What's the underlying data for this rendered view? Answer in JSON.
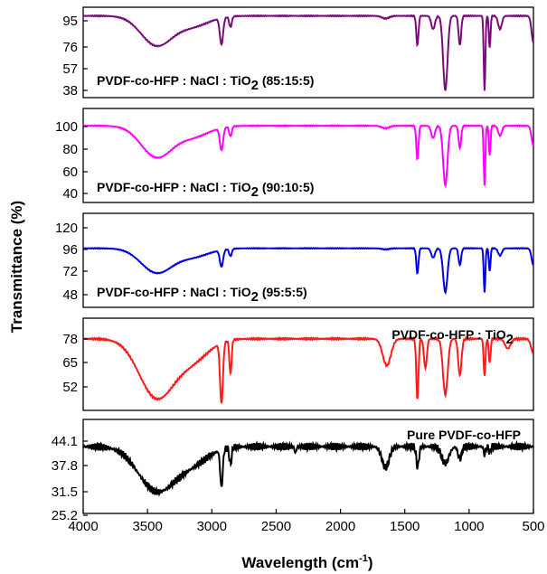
{
  "chart_data": {
    "type": "line",
    "xlabel": "Wavelength (cm",
    "xlabel_sup": "-1",
    "xlabel_end": ")",
    "ylabel": "Transmittance (%)",
    "x_range": [
      4000,
      500
    ],
    "x_ticks": [
      "4000",
      "3500",
      "3000",
      "2500",
      "2000",
      "1500",
      "1000",
      "500"
    ],
    "panels": [
      {
        "label": "PVDF-co-HFP : NaCl : TiO",
        "label_sub": "2",
        "label_tail": " (85:15:5)",
        "color": "#7a0a7a",
        "yticks": [
          "95",
          "76",
          "57",
          "38"
        ],
        "ylim": [
          36,
          104
        ],
        "baseline": 97.5,
        "oh": {
          "depth": 22,
          "center": 3430,
          "width": 170
        },
        "peaks": [
          [
            2925,
            20,
            18
          ],
          [
            2855,
            8,
            14
          ],
          [
            1650,
            2,
            40
          ],
          [
            1402,
            22,
            12
          ],
          [
            1280,
            10,
            20
          ],
          [
            1185,
            56,
            24
          ],
          [
            1072,
            22,
            14
          ],
          [
            880,
            56,
            9
          ],
          [
            840,
            24,
            9
          ],
          [
            760,
            10,
            20
          ],
          [
            500,
            20,
            20
          ]
        ]
      },
      {
        "label": "PVDF-co-HFP : NaCl : TiO",
        "label_sub": "2",
        "label_tail": " (90:10:5)",
        "color": "#ff00ff",
        "yticks": [
          "100",
          "80",
          "60",
          "40"
        ],
        "ylim": [
          36,
          112
        ],
        "baseline": 98,
        "oh": {
          "depth": 25,
          "center": 3430,
          "width": 170
        },
        "peaks": [
          [
            2925,
            18,
            18
          ],
          [
            2855,
            8,
            14
          ],
          [
            1650,
            2,
            40
          ],
          [
            1402,
            27,
            12
          ],
          [
            1280,
            10,
            20
          ],
          [
            1185,
            48,
            24
          ],
          [
            1072,
            18,
            14
          ],
          [
            880,
            48,
            9
          ],
          [
            840,
            24,
            9
          ],
          [
            760,
            8,
            20
          ],
          [
            500,
            16,
            20
          ]
        ]
      },
      {
        "label": "PVDF-co-HFP : NaCl : TiO",
        "label_sub": "2",
        "label_tail": " (95:5:5)",
        "color": "#0000e0",
        "yticks": [
          "120",
          "96",
          "72",
          "48"
        ],
        "ylim": [
          40,
          130
        ],
        "baseline": 96.5,
        "oh": {
          "depth": 23,
          "center": 3430,
          "width": 170
        },
        "peaks": [
          [
            2925,
            16,
            18
          ],
          [
            2855,
            7,
            14
          ],
          [
            1650,
            1,
            40
          ],
          [
            1402,
            24,
            12
          ],
          [
            1280,
            9,
            20
          ],
          [
            1185,
            42,
            24
          ],
          [
            1072,
            16,
            14
          ],
          [
            880,
            42,
            9
          ],
          [
            840,
            22,
            9
          ],
          [
            760,
            7,
            20
          ],
          [
            500,
            16,
            20
          ]
        ]
      },
      {
        "label": "PVDF-co-HFP : TiO",
        "label_sub": "2",
        "label_tail": "",
        "color": "#ff1a1a",
        "yticks": [
          "78",
          "65",
          "52"
        ],
        "ylim": [
          46,
          84
        ],
        "baseline": 75.5,
        "oh": {
          "depth": 24,
          "center": 3430,
          "width": 190
        },
        "peaks": [
          [
            2925,
            25,
            16
          ],
          [
            2855,
            14,
            12
          ],
          [
            1640,
            11,
            45
          ],
          [
            1402,
            25,
            12
          ],
          [
            1340,
            12,
            16
          ],
          [
            1185,
            23,
            26
          ],
          [
            1072,
            15,
            18
          ],
          [
            880,
            15,
            10
          ],
          [
            840,
            10,
            10
          ],
          [
            700,
            4,
            30
          ],
          [
            500,
            6,
            25
          ]
        ]
      },
      {
        "label": "Pure PVDF-co-HFP",
        "label_sub": "",
        "label_tail": "",
        "color": "#000000",
        "yticks": [
          "44.1",
          "37.8",
          "31.5",
          "25.2"
        ],
        "ylim": [
          24.5,
          47
        ],
        "baseline": 40.5,
        "oh": {
          "depth": 10.5,
          "center": 3430,
          "width": 200
        },
        "peaks": [
          [
            2925,
            9,
            14
          ],
          [
            2855,
            4,
            12
          ],
          [
            2350,
            1.5,
            10
          ],
          [
            1650,
            5,
            40
          ],
          [
            1400,
            5,
            14
          ],
          [
            1185,
            4,
            40
          ],
          [
            1072,
            3,
            20
          ],
          [
            880,
            2,
            10
          ],
          [
            840,
            1.5,
            10
          ]
        ]
      }
    ]
  }
}
